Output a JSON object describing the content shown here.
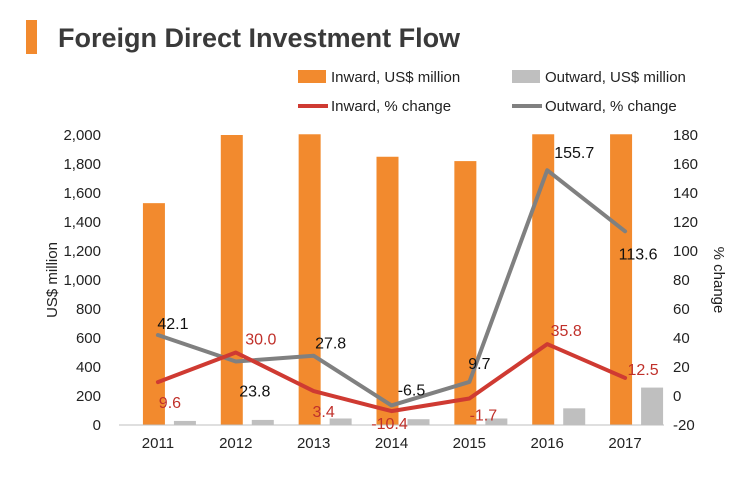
{
  "page": {
    "title": "Foreign Direct Investment Flow",
    "accent_color": "#f28a2e"
  },
  "chart_data": {
    "type": "bar+line",
    "title": "Foreign Direct Investment Flow",
    "categories": [
      "2011",
      "2012",
      "2013",
      "2014",
      "2015",
      "2016",
      "2017"
    ],
    "bar_series": [
      {
        "name": "Inward, US$ million",
        "color": "#f28a2e",
        "values": [
          1530,
          2000,
          2005,
          1850,
          1820,
          2005,
          2005
        ]
      },
      {
        "name": "Outward, US$ million",
        "color": "#bfbfbf",
        "values": [
          28,
          35,
          45,
          40,
          45,
          115,
          258
        ]
      }
    ],
    "line_series": [
      {
        "name": "Inward, % change",
        "color": "#cf3a32",
        "values": [
          9.6,
          30.0,
          3.4,
          -10.4,
          -1.7,
          35.8,
          12.5
        ],
        "labels": [
          "9.6",
          "30.0",
          "3.4",
          "-10.4",
          "-1.7",
          "35.8",
          "12.5"
        ]
      },
      {
        "name": "Outward, % change",
        "color": "#808080",
        "values": [
          42.1,
          23.8,
          27.8,
          -6.5,
          9.7,
          155.7,
          113.6
        ],
        "labels": [
          "42.1",
          "23.8",
          "27.8",
          "-6.5",
          "9.7",
          "155.7",
          "113.6"
        ]
      }
    ],
    "y_left": {
      "label": "US$ million",
      "min": 0,
      "max": 2000,
      "ticks": [
        0,
        200,
        400,
        600,
        800,
        1000,
        1200,
        1400,
        1600,
        1800,
        2000
      ],
      "tick_labels": [
        "0",
        "200",
        "400",
        "600",
        "800",
        "1,000",
        "1,200",
        "1,400",
        "1,600",
        "1,800",
        "2,000"
      ]
    },
    "y_right": {
      "label": "% change",
      "min": -20,
      "max": 180,
      "ticks": [
        -20,
        0,
        20,
        40,
        60,
        80,
        100,
        120,
        140,
        160,
        180
      ],
      "tick_labels": [
        "-20",
        "0",
        "20",
        "40",
        "60",
        "80",
        "100",
        "120",
        "140",
        "160",
        "180"
      ]
    },
    "grid": false,
    "legend": "top"
  }
}
